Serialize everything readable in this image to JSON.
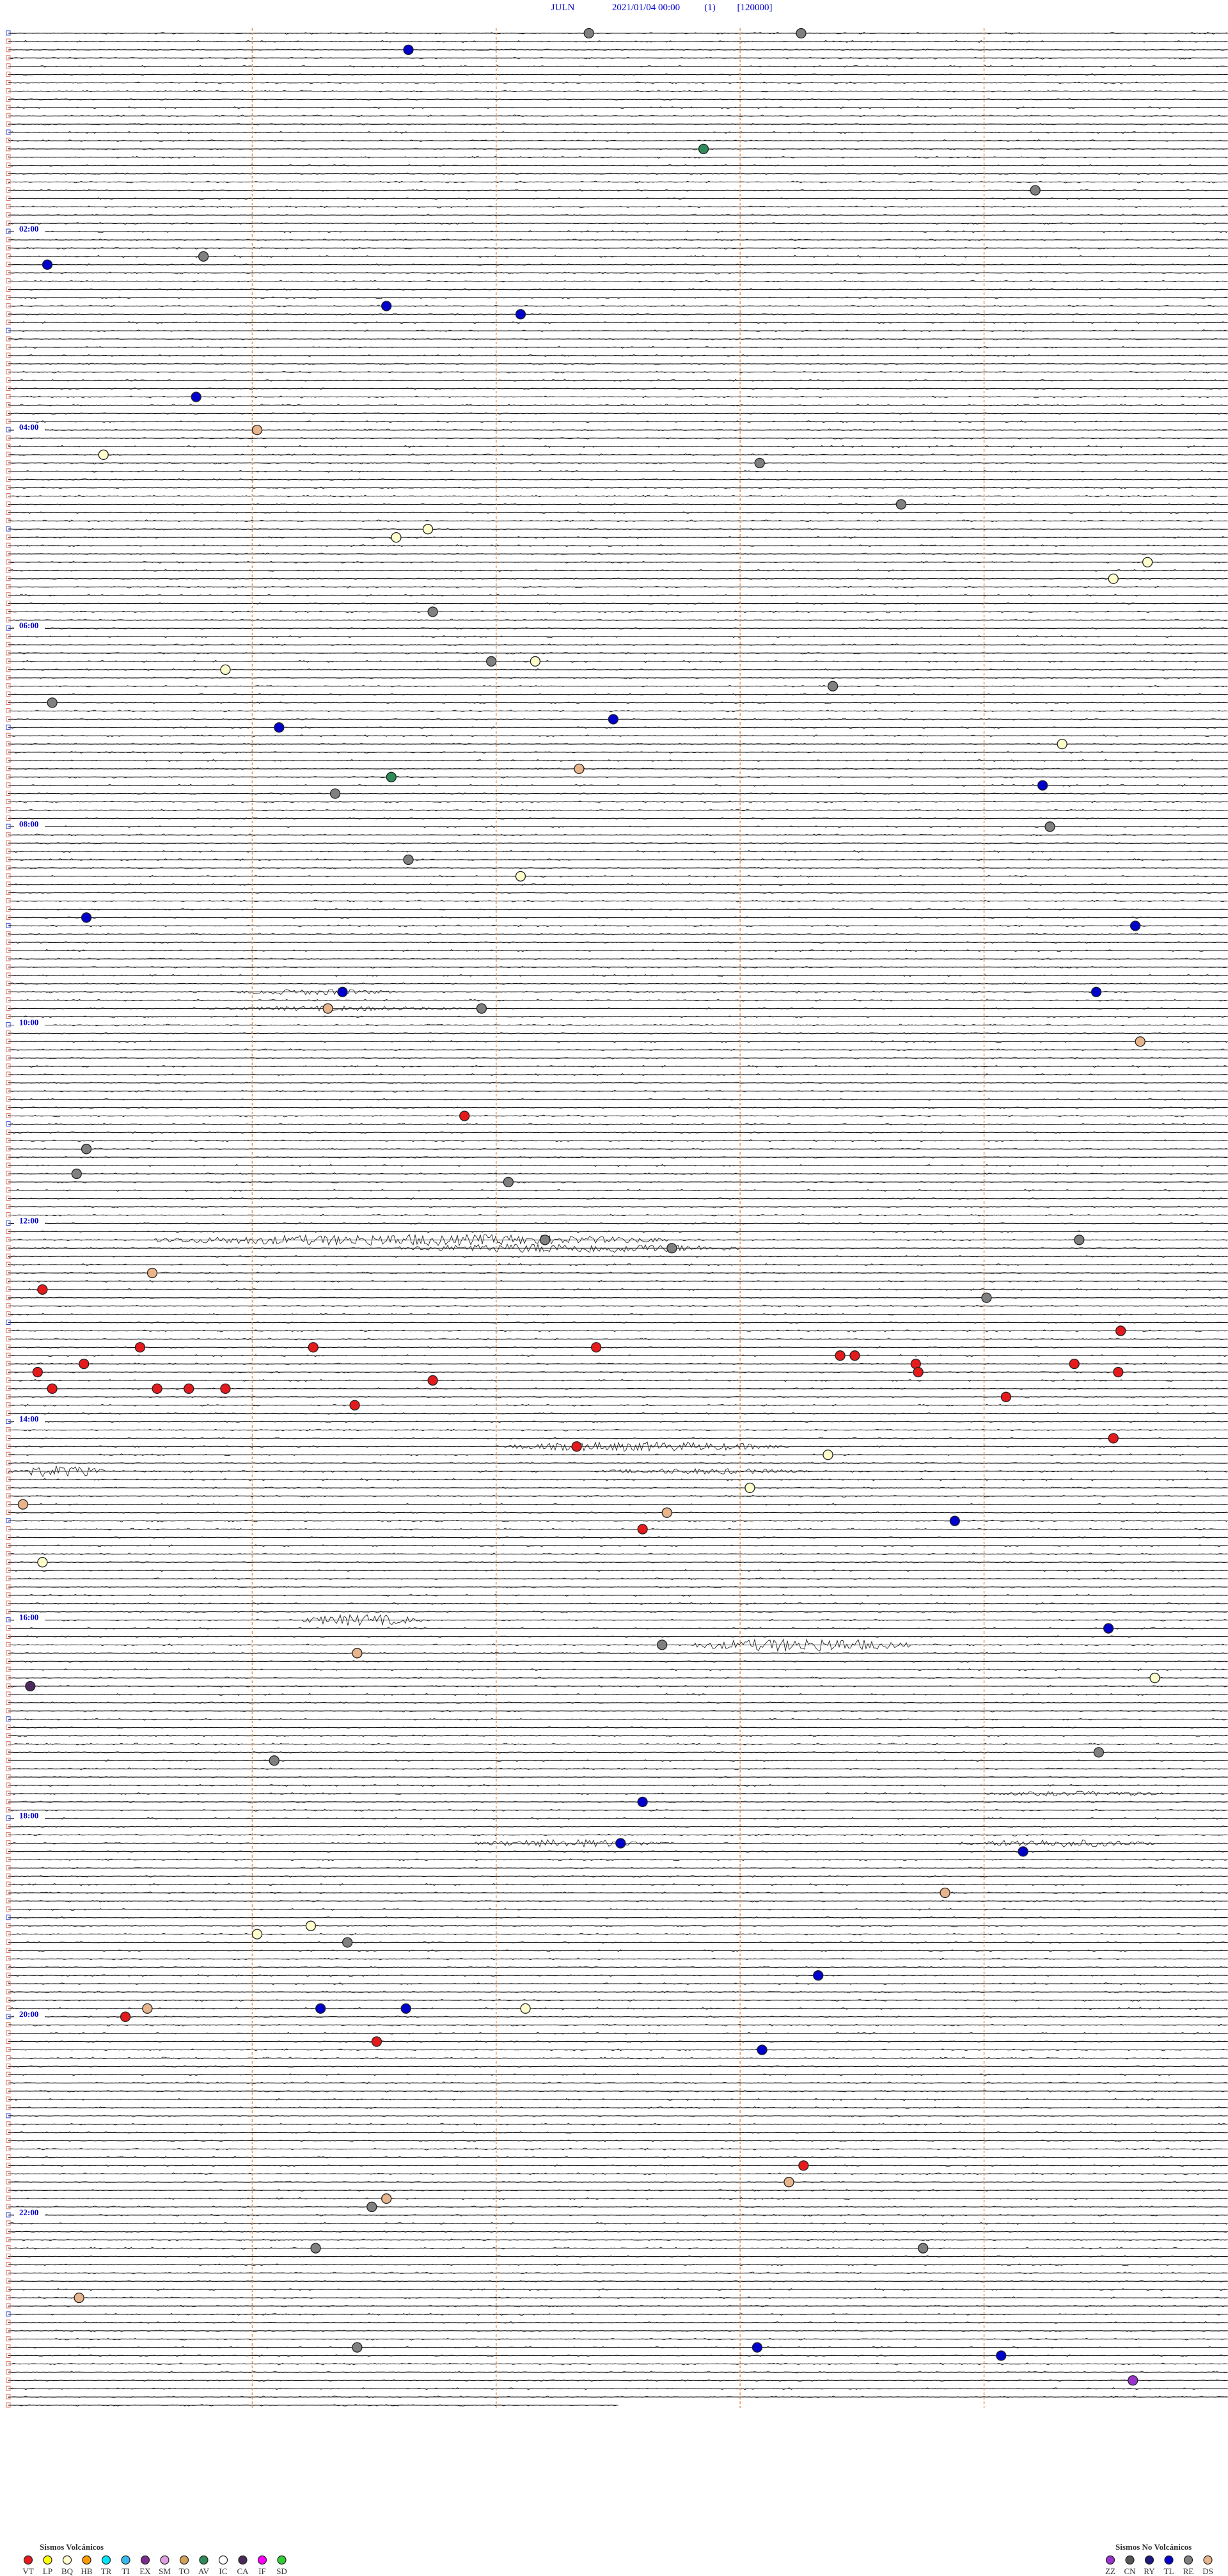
{
  "chart_data": {
    "type": "helicorder",
    "header": {
      "station": "JULN",
      "datetime": "2021/01/04 00:00",
      "channel": "(1)",
      "scale": "[120000]"
    },
    "hour_labels": [
      "02:00",
      "04:00",
      "06:00",
      "08:00",
      "10:00",
      "12:00",
      "14:00",
      "16:00",
      "18:00",
      "20:00",
      "22:00"
    ],
    "events": {
      "classes": [
        "RE",
        "RE",
        "TL",
        "AV",
        "RE",
        "RE",
        "TL",
        "TL",
        "TL",
        "TL",
        "DS",
        "BQ",
        "RE",
        "RE",
        "BQ",
        "BQ",
        "BQ",
        "BQ",
        "RE",
        "RE",
        "BQ",
        "BQ",
        "RE",
        "RE",
        "TL",
        "TL",
        "BQ",
        "DS",
        "AV",
        "TL",
        "RE",
        "RE",
        "RE",
        "BQ",
        "TL",
        "TL",
        "TL",
        "TL",
        "DS",
        "RE",
        "DS",
        "VT",
        "RE",
        "RE",
        "RE",
        "RE",
        "RE",
        "RE",
        "DS",
        "VT",
        "RE",
        "VT",
        "VT",
        "VT",
        "VT",
        "VT",
        "VT",
        "VT",
        "VT",
        "VT",
        "VT",
        "VT",
        "VT",
        "VT",
        "VT",
        "VT",
        "VT",
        "VT",
        "VT",
        "VT",
        "VT",
        "VT",
        "BQ",
        "BQ",
        "DS",
        "DS",
        "TL",
        "VT",
        "BQ",
        "TL",
        "RE",
        "DS",
        "BQ",
        "CA",
        "RE",
        "RE",
        "TL",
        "TL",
        "TL",
        "DS",
        "BQ",
        "BQ",
        "RE",
        "TL",
        "DS",
        "TL",
        "TL",
        "BQ",
        "VT",
        "VT",
        "TL",
        "VT",
        "DS",
        "DS",
        "RE",
        "RE",
        "RE",
        "DS",
        "RE",
        "TL",
        "TL",
        "ZZ"
      ],
      "minutes": [
        2.38,
        3.25,
        11.64,
        72.85,
        99.21,
        135.8,
        140.16,
        166.55,
        172.1,
        220.77,
        241.02,
        255.39,
        263.08,
        288.66,
        301.72,
        306.59,
        324.67,
        334.53,
        351.74,
        381.98,
        382.16,
        385.89,
        398.38,
        405.18,
        417.48,
        421.11,
        434.32,
        447.34,
        451.57,
        459.24,
        461.34,
        484.27,
        501.64,
        512.1,
        535.32,
        544.62,
        581.37,
        584.46,
        591.31,
        591.94,
        614.64,
        656.87,
        675.32,
        690.28,
        697.05,
        732.2,
        734.39,
        737.72,
        750.59,
        760.14,
        769.01,
        789.56,
        795.54,
        796.25,
        797.41,
        803.41,
        803.47,
        805.31,
        808.72,
        809.37,
        810.12,
        813.73,
        814.55,
        816.74,
        820.18,
        820.61,
        820.74,
        820.89,
        829.09,
        831.42,
        854.53,
        857.33,
        863.36,
        883.04,
        890.06,
        897.7,
        903.88,
        907.6,
        925.14,
        969.51,
        977.68,
        981.43,
        999.7,
        1000.09,
        1044.47,
        1046.09,
        1072.6,
        1097.51,
        1104.16,
        1128.84,
        1146.24,
        1151.02,
        1156.39,
        1178.32,
        1195.57,
        1196.28,
        1196.63,
        1197.12,
        1200.48,
        1216.51,
        1223.09,
        1293.26,
        1303.2,
        1311.55,
        1316.49,
        1341.26,
        1343.75,
        1370.29,
        1401.43,
        1403.07,
        1409.07,
        1424.61
      ]
    },
    "legend_volcanic": {
      "title": "Sismos Volcánicos",
      "codes": [
        "VT",
        "LP",
        "BQ",
        "HB",
        "TR",
        "TI",
        "EX",
        "SM",
        "TO",
        "AV",
        "IC",
        "CA",
        "IF",
        "SD"
      ],
      "colors": [
        "#e41a1c",
        "#ffff00",
        "#ffffcc",
        "#ff9900",
        "#00e5ff",
        "#33bbee",
        "#7b2d8e",
        "#dda0dd",
        "#d2a15a",
        "#2e8b57",
        "#ffffff",
        "#4b2a5b",
        "#ff00ff",
        "#33cc33"
      ]
    },
    "legend_non_volcanic": {
      "title": "Sismos No Volcánicos",
      "codes": [
        "ZZ",
        "CN",
        "RY",
        "TL",
        "RE",
        "DS"
      ],
      "colors": [
        "#9933cc",
        "#555555",
        "#1a1a80",
        "#0000cc",
        "#808080",
        "#e8b48c"
      ]
    }
  }
}
